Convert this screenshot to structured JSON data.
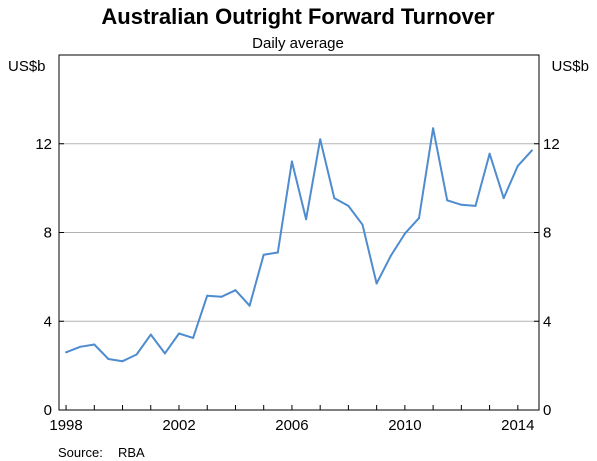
{
  "chart_data": {
    "type": "line",
    "title": "Australian Outright Forward Turnover",
    "subtitle": "Daily average",
    "y_unit_left": "US$b",
    "y_unit_right": "US$b",
    "ylim": [
      0,
      16
    ],
    "yticks": [
      0,
      4,
      8,
      12
    ],
    "ytick_labels": [
      "0",
      "4",
      "8",
      "12"
    ],
    "xlim": [
      1997.75,
      2014.75
    ],
    "xticks": [
      1998,
      2002,
      2006,
      2010,
      2014
    ],
    "xtick_labels": [
      "1998",
      "2002",
      "2006",
      "2010",
      "2014"
    ],
    "grid": true,
    "line_color": "#4f8ccf",
    "series": [
      {
        "x": [
          1998.0,
          1998.5,
          1999.0,
          1999.5,
          2000.0,
          2000.5,
          2001.0,
          2001.5,
          2002.0,
          2002.5,
          2003.0,
          2003.5,
          2004.0,
          2004.5,
          2005.0,
          2005.5,
          2006.0,
          2006.5,
          2007.0,
          2007.5,
          2008.0,
          2008.5,
          2009.0,
          2009.5,
          2010.0,
          2010.5,
          2011.0,
          2011.5,
          2012.0,
          2012.5,
          2013.0,
          2013.5,
          2014.0,
          2014.5
        ],
        "values": [
          2.6,
          2.85,
          2.95,
          2.3,
          2.2,
          2.5,
          3.4,
          2.55,
          3.45,
          3.25,
          5.15,
          5.1,
          5.4,
          4.7,
          7.0,
          7.1,
          11.2,
          8.6,
          12.2,
          9.55,
          9.2,
          8.35,
          5.7,
          6.95,
          7.95,
          8.65,
          12.7,
          9.45,
          9.25,
          9.2,
          11.55,
          9.55,
          11.0,
          11.7
        ]
      }
    ],
    "source_label": "Source:",
    "source_value": "RBA"
  }
}
